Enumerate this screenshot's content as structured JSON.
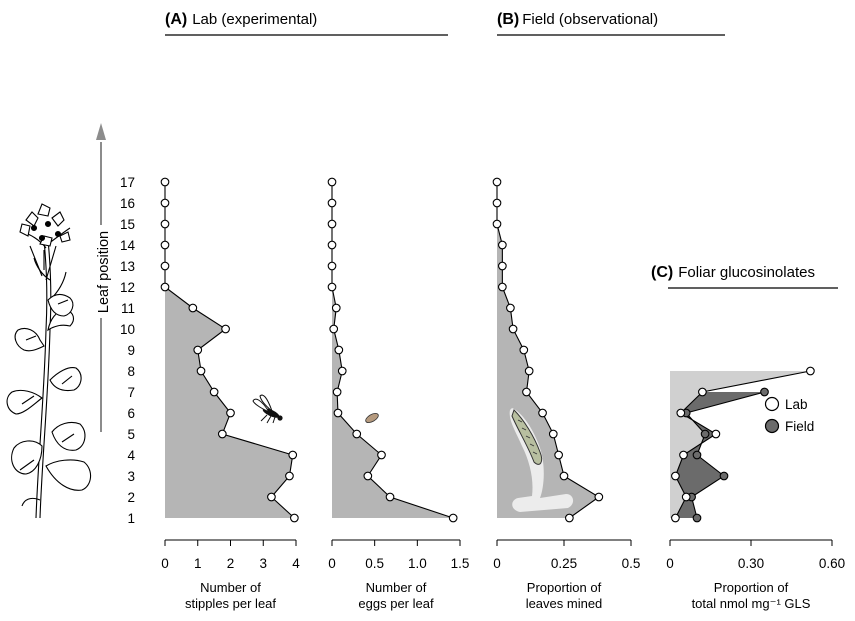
{
  "panels": {
    "A": {
      "letter": "(A)",
      "text": "Lab (experimental)"
    },
    "B": {
      "letter": "(B)",
      "text": "Field (observational)"
    },
    "C": {
      "letter": "(C)",
      "text": "Foliar glucosinolates"
    }
  },
  "y_axis_title": "Leaf position",
  "legend": {
    "lab": "Lab",
    "field": "Field"
  },
  "colors": {
    "fill": "#b5b5b5",
    "fill_light": "#d0d0d0",
    "fill_dark": "#6b6b6b",
    "line": "#000000",
    "marker_open": "#ffffff",
    "marker_field": "#6b6b6b",
    "arrow": "#8c8c8c"
  },
  "icons": {
    "plant": "plant-illustration-icon",
    "fly": "fly-icon",
    "egg": "egg-icon",
    "mine": "leaf-mine-icon"
  },
  "chart_data": [
    {
      "type": "area",
      "panel": "A",
      "xlabel": [
        "Number of",
        "stipples per leaf"
      ],
      "ylabel": "Leaf position",
      "xlim": [
        0,
        4
      ],
      "xticks": [
        "0",
        "1",
        "2",
        "3",
        "4"
      ],
      "ylim": [
        1,
        17
      ],
      "yticks": [
        "1",
        "2",
        "3",
        "4",
        "5",
        "6",
        "7",
        "8",
        "9",
        "10",
        "11",
        "12",
        "13",
        "14",
        "15",
        "16",
        "17"
      ],
      "y": [
        1,
        2,
        3,
        4,
        5,
        6,
        7,
        8,
        9,
        10,
        11,
        12,
        13,
        14,
        15,
        16,
        17
      ],
      "x": [
        3.95,
        3.25,
        3.8,
        3.9,
        1.75,
        2.0,
        1.5,
        1.1,
        1.0,
        1.85,
        0.85,
        0.0,
        0.0,
        0.0,
        0.0,
        0.0,
        0.0
      ]
    },
    {
      "type": "area",
      "panel": "A",
      "xlabel": [
        "Number of",
        "eggs per leaf"
      ],
      "xlim": [
        0,
        1.5
      ],
      "xticks": [
        "0",
        "0.5",
        "1.0",
        "1.5"
      ],
      "ylim": [
        1,
        17
      ],
      "y": [
        1,
        2,
        3,
        4,
        5,
        6,
        7,
        8,
        9,
        10,
        11,
        12,
        13,
        14,
        15,
        16,
        17
      ],
      "x": [
        1.42,
        0.68,
        0.42,
        0.58,
        0.29,
        0.07,
        0.06,
        0.12,
        0.08,
        0.02,
        0.05,
        0.0,
        0.0,
        0.0,
        0.0,
        0.0,
        0.0
      ]
    },
    {
      "type": "area",
      "panel": "B",
      "xlabel": [
        "Proportion of",
        "leaves mined"
      ],
      "xlim": [
        0,
        0.5
      ],
      "xticks": [
        "0",
        "0.25",
        "0.5"
      ],
      "ylim": [
        1,
        17
      ],
      "y": [
        1,
        2,
        3,
        4,
        5,
        6,
        7,
        8,
        9,
        10,
        11,
        12,
        13,
        14,
        15,
        16,
        17
      ],
      "x": [
        0.27,
        0.38,
        0.25,
        0.23,
        0.21,
        0.17,
        0.11,
        0.12,
        0.1,
        0.06,
        0.05,
        0.02,
        0.02,
        0.02,
        0.0,
        0.0,
        0.0
      ]
    },
    {
      "type": "area",
      "panel": "C",
      "xlabel": [
        "Proportion of",
        "total nmol mg⁻¹ GLS"
      ],
      "xlim": [
        0,
        0.6
      ],
      "xticks": [
        "0",
        "0.30",
        "0.60"
      ],
      "ylim": [
        1,
        17
      ],
      "series": [
        {
          "name": "Lab",
          "y": [
            1,
            2,
            3,
            4,
            5,
            6,
            7,
            8
          ],
          "x": [
            0.02,
            0.06,
            0.02,
            0.05,
            0.17,
            0.04,
            0.12,
            0.52
          ]
        },
        {
          "name": "Field",
          "y": [
            1,
            2,
            3,
            4,
            5,
            6,
            7
          ],
          "x": [
            0.1,
            0.08,
            0.2,
            0.1,
            0.13,
            0.06,
            0.35
          ]
        }
      ]
    }
  ]
}
